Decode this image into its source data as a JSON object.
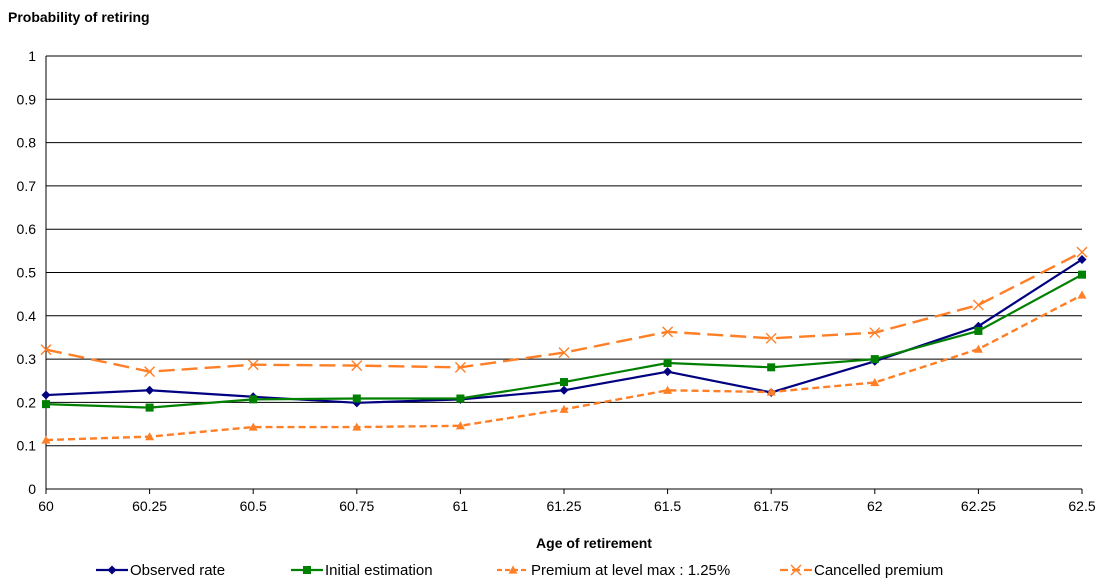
{
  "chart_data": {
    "type": "line",
    "ylabel": "Probability of retiring",
    "xlabel": "Age of retirement",
    "x": [
      "60",
      "60.25",
      "60.5",
      "60.75",
      "61",
      "61.25",
      "61.5",
      "61.75",
      "62",
      "62.25",
      "62.5"
    ],
    "ylim": [
      0,
      1
    ],
    "yticks": [
      "0",
      "0.1",
      "0.2",
      "0.3",
      "0.4",
      "0.5",
      "0.6",
      "0.7",
      "0.8",
      "0.9",
      "1"
    ],
    "grid": "horizontal",
    "legend_position": "bottom",
    "series": [
      {
        "name": "Observed rate",
        "color": "#000080",
        "marker": "diamond",
        "dash": "solid",
        "values": [
          0.217,
          0.228,
          0.213,
          0.199,
          0.207,
          0.228,
          0.271,
          0.223,
          0.295,
          0.376,
          0.53
        ]
      },
      {
        "name": "Initial estimation",
        "color": "#008000",
        "marker": "square",
        "dash": "solid",
        "values": [
          0.196,
          0.188,
          0.207,
          0.209,
          0.209,
          0.247,
          0.291,
          0.281,
          0.3,
          0.365,
          0.495
        ]
      },
      {
        "name": "Premium at level max : 1.25%",
        "color": "#FF7F27",
        "marker": "triangle",
        "dash": "short",
        "values": [
          0.113,
          0.121,
          0.143,
          0.143,
          0.146,
          0.184,
          0.228,
          0.224,
          0.246,
          0.323,
          0.448
        ]
      },
      {
        "name": "Cancelled premium",
        "color": "#FF7F27",
        "marker": "x",
        "dash": "long",
        "values": [
          0.322,
          0.271,
          0.287,
          0.285,
          0.281,
          0.315,
          0.363,
          0.348,
          0.361,
          0.425,
          0.547
        ]
      }
    ]
  }
}
